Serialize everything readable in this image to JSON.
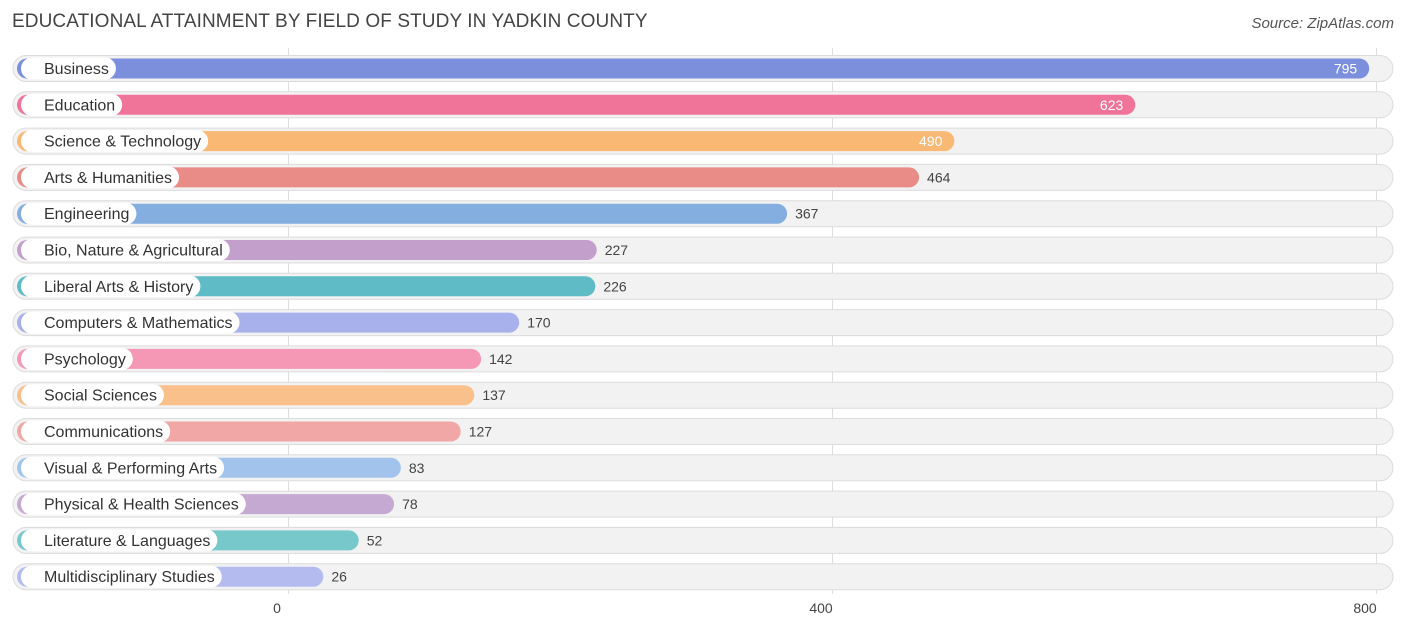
{
  "chart_data": {
    "type": "bar",
    "orientation": "horizontal",
    "title": "EDUCATIONAL ATTAINMENT BY FIELD OF STUDY IN YADKIN COUNTY",
    "source": "Source: ZipAtlas.com",
    "categories": [
      "Business",
      "Education",
      "Science & Technology",
      "Arts & Humanities",
      "Engineering",
      "Bio, Nature & Agricultural",
      "Liberal Arts & History",
      "Computers & Mathematics",
      "Psychology",
      "Social Sciences",
      "Communications",
      "Visual & Performing Arts",
      "Physical & Health Sciences",
      "Literature & Languages",
      "Multidisciplinary Studies"
    ],
    "values": [
      795,
      623,
      490,
      464,
      367,
      227,
      226,
      170,
      142,
      137,
      127,
      83,
      78,
      52,
      26
    ],
    "colors": [
      "#7b8fdc",
      "#f0739a",
      "#f9b873",
      "#e98b87",
      "#84aee0",
      "#c39fcb",
      "#5fbcc6",
      "#a9b1ec",
      "#f598b6",
      "#f9c08c",
      "#f0a7a5",
      "#a1c3ec",
      "#c6a9d3",
      "#77c8cb",
      "#b4bcef"
    ],
    "xlim": [
      0,
      800
    ],
    "xticks": [
      0,
      400,
      800
    ],
    "xtick_labels": [
      "0",
      "400",
      "800"
    ],
    "grid": true
  }
}
